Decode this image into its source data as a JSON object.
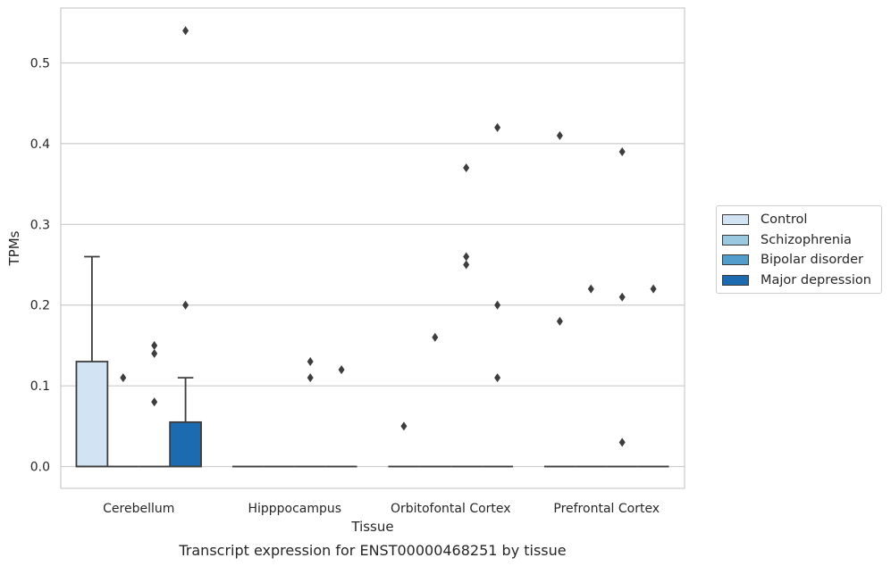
{
  "chart_data": {
    "type": "box",
    "caption": "Transcript expression for ENST00000468251 by tissue",
    "xlabel": "Tissue",
    "ylabel": "TPMs",
    "ylim": [
      -0.027,
      0.568
    ],
    "yticks": [
      0.0,
      0.1,
      0.2,
      0.3,
      0.4,
      0.5
    ],
    "ytick_labels": [
      "0.0",
      "0.1",
      "0.2",
      "0.3",
      "0.4",
      "0.5"
    ],
    "grid": true,
    "legend_position": "right",
    "categories": [
      "Cerebellum",
      "Hipppocampus",
      "Orbitofontal Cortex",
      "Prefrontal Cortex"
    ],
    "series": [
      {
        "name": "Control",
        "color": "#d2e3f3"
      },
      {
        "name": "Schizophrenia",
        "color": "#9ac8e0"
      },
      {
        "name": "Bipolar disorder",
        "color": "#529dcc"
      },
      {
        "name": "Major depression",
        "color": "#1c6aaf"
      }
    ],
    "boxes": [
      {
        "category": "Cerebellum",
        "series": "Control",
        "q1": 0.0,
        "median": 0.0,
        "q3": 0.13,
        "whisker_low": 0.0,
        "whisker_high": 0.26
      },
      {
        "category": "Cerebellum",
        "series": "Schizophrenia",
        "q1": 0.0,
        "median": 0.0,
        "q3": 0.0,
        "whisker_low": 0.0,
        "whisker_high": 0.0
      },
      {
        "category": "Cerebellum",
        "series": "Bipolar disorder",
        "q1": 0.0,
        "median": 0.0,
        "q3": 0.0,
        "whisker_low": 0.0,
        "whisker_high": 0.0
      },
      {
        "category": "Cerebellum",
        "series": "Major depression",
        "q1": 0.0,
        "median": 0.0,
        "q3": 0.055,
        "whisker_low": 0.0,
        "whisker_high": 0.11
      },
      {
        "category": "Hipppocampus",
        "series": "Control",
        "q1": 0.0,
        "median": 0.0,
        "q3": 0.0,
        "whisker_low": 0.0,
        "whisker_high": 0.0
      },
      {
        "category": "Hipppocampus",
        "series": "Schizophrenia",
        "q1": 0.0,
        "median": 0.0,
        "q3": 0.0,
        "whisker_low": 0.0,
        "whisker_high": 0.0
      },
      {
        "category": "Hipppocampus",
        "series": "Bipolar disorder",
        "q1": 0.0,
        "median": 0.0,
        "q3": 0.0,
        "whisker_low": 0.0,
        "whisker_high": 0.0
      },
      {
        "category": "Hipppocampus",
        "series": "Major depression",
        "q1": 0.0,
        "median": 0.0,
        "q3": 0.0,
        "whisker_low": 0.0,
        "whisker_high": 0.0
      },
      {
        "category": "Orbitofontal Cortex",
        "series": "Control",
        "q1": 0.0,
        "median": 0.0,
        "q3": 0.0,
        "whisker_low": 0.0,
        "whisker_high": 0.0
      },
      {
        "category": "Orbitofontal Cortex",
        "series": "Schizophrenia",
        "q1": 0.0,
        "median": 0.0,
        "q3": 0.0,
        "whisker_low": 0.0,
        "whisker_high": 0.0
      },
      {
        "category": "Orbitofontal Cortex",
        "series": "Bipolar disorder",
        "q1": 0.0,
        "median": 0.0,
        "q3": 0.0,
        "whisker_low": 0.0,
        "whisker_high": 0.0
      },
      {
        "category": "Orbitofontal Cortex",
        "series": "Major depression",
        "q1": 0.0,
        "median": 0.0,
        "q3": 0.0,
        "whisker_low": 0.0,
        "whisker_high": 0.0
      },
      {
        "category": "Prefrontal Cortex",
        "series": "Control",
        "q1": 0.0,
        "median": 0.0,
        "q3": 0.0,
        "whisker_low": 0.0,
        "whisker_high": 0.0
      },
      {
        "category": "Prefrontal Cortex",
        "series": "Schizophrenia",
        "q1": 0.0,
        "median": 0.0,
        "q3": 0.0,
        "whisker_low": 0.0,
        "whisker_high": 0.0
      },
      {
        "category": "Prefrontal Cortex",
        "series": "Bipolar disorder",
        "q1": 0.0,
        "median": 0.0,
        "q3": 0.0,
        "whisker_low": 0.0,
        "whisker_high": 0.0
      },
      {
        "category": "Prefrontal Cortex",
        "series": "Major depression",
        "q1": 0.0,
        "median": 0.0,
        "q3": 0.0,
        "whisker_low": 0.0,
        "whisker_high": 0.0
      }
    ],
    "outliers": [
      {
        "category": "Cerebellum",
        "series": "Schizophrenia",
        "values": [
          0.11
        ]
      },
      {
        "category": "Cerebellum",
        "series": "Bipolar disorder",
        "values": [
          0.15,
          0.14,
          0.08
        ]
      },
      {
        "category": "Cerebellum",
        "series": "Major depression",
        "values": [
          0.54,
          0.2
        ]
      },
      {
        "category": "Hipppocampus",
        "series": "Bipolar disorder",
        "values": [
          0.13,
          0.11
        ]
      },
      {
        "category": "Hipppocampus",
        "series": "Major depression",
        "values": [
          0.12
        ]
      },
      {
        "category": "Orbitofontal Cortex",
        "series": "Control",
        "values": [
          0.05
        ]
      },
      {
        "category": "Orbitofontal Cortex",
        "series": "Schizophrenia",
        "values": [
          0.16
        ]
      },
      {
        "category": "Orbitofontal Cortex",
        "series": "Bipolar disorder",
        "values": [
          0.37,
          0.26,
          0.25
        ]
      },
      {
        "category": "Orbitofontal Cortex",
        "series": "Major depression",
        "values": [
          0.42,
          0.2,
          0.11
        ]
      },
      {
        "category": "Prefrontal Cortex",
        "series": "Control",
        "values": [
          0.41,
          0.18
        ]
      },
      {
        "category": "Prefrontal Cortex",
        "series": "Schizophrenia",
        "values": [
          0.22
        ]
      },
      {
        "category": "Prefrontal Cortex",
        "series": "Bipolar disorder",
        "values": [
          0.39,
          0.21,
          0.03
        ]
      },
      {
        "category": "Prefrontal Cortex",
        "series": "Major depression",
        "values": [
          0.22
        ]
      }
    ]
  }
}
